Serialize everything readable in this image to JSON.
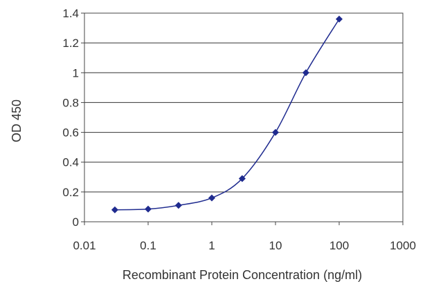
{
  "chart_data": {
    "type": "line",
    "title": "",
    "xlabel": "Recombinant Protein Concentration (ng/ml)",
    "ylabel": "OD 450",
    "x_scale": "log",
    "xlim": [
      0.01,
      1000
    ],
    "ylim": [
      0,
      1.4
    ],
    "x_ticks": [
      "0.01",
      "0.1",
      "1",
      "10",
      "100",
      "1000"
    ],
    "y_ticks": [
      "0",
      "0.2",
      "0.4",
      "0.6",
      "0.8",
      "1",
      "1.2",
      "1.4"
    ],
    "grid": "horizontal",
    "series": [
      {
        "x": [
          0.03,
          0.1,
          0.3,
          1,
          3,
          10,
          30,
          100
        ],
        "y": [
          0.08,
          0.085,
          0.11,
          0.16,
          0.29,
          0.6,
          1.0,
          1.36
        ],
        "color": "#1f2b8f",
        "marker": "diamond"
      }
    ]
  }
}
